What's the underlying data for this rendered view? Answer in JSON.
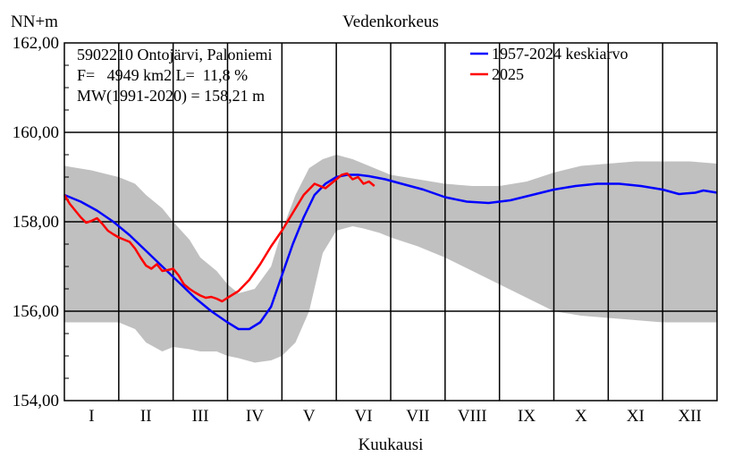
{
  "chart_data": {
    "type": "line",
    "title": "Vedenkorkeus",
    "ylabel": "NN+m",
    "xlabel": "Kuukausi",
    "ylim": [
      154,
      162
    ],
    "xlim": [
      0,
      12
    ],
    "yticks": [
      154,
      156,
      158,
      160,
      162
    ],
    "ytick_labels": [
      "154,00",
      "156,00",
      "158,00",
      "160,00",
      "162,00"
    ],
    "categories": [
      "I",
      "II",
      "III",
      "IV",
      "V",
      "VI",
      "VII",
      "VIII",
      "IX",
      "X",
      "XI",
      "XII"
    ],
    "grid": true,
    "info_lines": [
      "5902210 Ontojärvi, Paloniemi",
      "F=   4949 km2 L=  11,8 %",
      "MW(1991-2020) = 158,21 m"
    ],
    "legend_position": "top-right",
    "range_band": {
      "color": "#c0c0c0",
      "x": [
        0.0,
        0.5,
        1.0,
        1.3,
        1.5,
        1.8,
        2.0,
        2.3,
        2.5,
        2.8,
        3.0,
        3.2,
        3.5,
        3.8,
        4.0,
        4.25,
        4.5,
        4.75,
        5.0,
        5.3,
        5.5,
        5.8,
        6.0,
        6.5,
        7.0,
        7.5,
        8.0,
        8.5,
        9.0,
        9.5,
        10.0,
        10.5,
        11.0,
        11.5,
        12.0
      ],
      "upper": [
        159.25,
        159.15,
        159.0,
        158.85,
        158.6,
        158.3,
        158.0,
        157.6,
        157.2,
        156.9,
        156.6,
        156.4,
        156.5,
        157.0,
        157.8,
        158.6,
        159.2,
        159.4,
        159.5,
        159.4,
        159.3,
        159.15,
        159.05,
        158.95,
        158.85,
        158.8,
        158.8,
        158.9,
        159.1,
        159.25,
        159.3,
        159.35,
        159.35,
        159.35,
        159.3
      ],
      "lower": [
        155.75,
        155.75,
        155.75,
        155.6,
        155.3,
        155.1,
        155.2,
        155.15,
        155.1,
        155.1,
        155.0,
        154.95,
        154.85,
        154.9,
        155.0,
        155.3,
        156.0,
        157.3,
        157.8,
        157.9,
        157.85,
        157.75,
        157.65,
        157.45,
        157.2,
        156.9,
        156.6,
        156.3,
        156.0,
        155.9,
        155.85,
        155.8,
        155.75,
        155.75,
        155.75
      ]
    },
    "series": [
      {
        "name": "1957-2024 keskiarvo",
        "color": "#0000ff",
        "x": [
          0.0,
          0.3,
          0.6,
          0.9,
          1.2,
          1.5,
          1.8,
          2.1,
          2.4,
          2.7,
          3.0,
          3.2,
          3.4,
          3.6,
          3.8,
          4.0,
          4.2,
          4.4,
          4.6,
          4.8,
          5.0,
          5.2,
          5.4,
          5.6,
          5.9,
          6.2,
          6.6,
          7.0,
          7.4,
          7.8,
          8.2,
          8.6,
          9.0,
          9.4,
          9.8,
          10.2,
          10.6,
          11.0,
          11.3,
          11.6,
          11.75,
          11.85,
          12.0
        ],
        "values": [
          158.6,
          158.45,
          158.25,
          158.0,
          157.7,
          157.35,
          157.0,
          156.65,
          156.3,
          156.0,
          155.75,
          155.6,
          155.6,
          155.75,
          156.1,
          156.8,
          157.5,
          158.1,
          158.6,
          158.85,
          159.0,
          159.05,
          159.05,
          159.02,
          158.95,
          158.85,
          158.72,
          158.55,
          158.45,
          158.42,
          158.48,
          158.6,
          158.72,
          158.8,
          158.85,
          158.85,
          158.8,
          158.72,
          158.62,
          158.65,
          158.7,
          158.68,
          158.65
        ]
      },
      {
        "name": "2025",
        "color": "#ff0000",
        "x": [
          0.0,
          0.1,
          0.2,
          0.3,
          0.4,
          0.5,
          0.6,
          0.7,
          0.8,
          0.9,
          1.0,
          1.1,
          1.2,
          1.3,
          1.4,
          1.5,
          1.6,
          1.7,
          1.8,
          1.9,
          2.0,
          2.1,
          2.2,
          2.3,
          2.4,
          2.5,
          2.6,
          2.7,
          2.8,
          2.9,
          3.0,
          3.2,
          3.4,
          3.6,
          3.8,
          4.0,
          4.2,
          4.4,
          4.6,
          4.8,
          5.0,
          5.1,
          5.2,
          5.3,
          5.4,
          5.5,
          5.6,
          5.7
        ],
        "values": [
          158.6,
          158.4,
          158.25,
          158.1,
          157.98,
          158.02,
          158.08,
          157.95,
          157.8,
          157.72,
          157.65,
          157.6,
          157.55,
          157.4,
          157.2,
          157.02,
          156.95,
          157.05,
          156.9,
          156.92,
          156.95,
          156.8,
          156.6,
          156.5,
          156.42,
          156.35,
          156.3,
          156.32,
          156.28,
          156.22,
          156.3,
          156.45,
          156.7,
          157.05,
          157.45,
          157.8,
          158.2,
          158.6,
          158.85,
          158.75,
          158.95,
          159.05,
          159.08,
          158.95,
          159.0,
          158.85,
          158.9,
          158.8
        ]
      }
    ]
  }
}
